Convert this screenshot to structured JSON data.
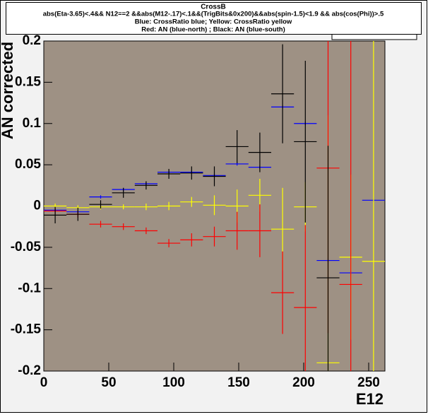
{
  "chart_data": {
    "type": "errorbar",
    "title": "CrossB",
    "subtitle_lines": [
      "abs(Eta-3.65)<.4&& N12==2 &&abs(M12-.17)<.1&&(TrigBits&0x200)&&abs(spin-1.5)<1.9 && abs(cos(Phi))>.5",
      "Blue: CrossRatio blue;  Yellow: CrossRatio yellow",
      "Red: AN (blue-north) ;  Black: AN (blue-south)"
    ],
    "x_label": "E12",
    "y_label": "AN corrected",
    "x": [
      8.75,
      26.25,
      43.75,
      61.25,
      78.75,
      96.25,
      113.75,
      131.25,
      148.75,
      166.25,
      183.75,
      201.25,
      218.75,
      236.25,
      253.75
    ],
    "series": [
      {
        "color": "#0000ff",
        "values": [
          -0.005,
          -0.007,
          0.011,
          0.02,
          0.027,
          0.041,
          0.041,
          0.037,
          0.051,
          0.047,
          0.12,
          0.1,
          -0.066,
          -0.081,
          0.007
        ],
        "errors": [
          0.002,
          0.002,
          0.002,
          0.002,
          0.002,
          0.002,
          0.002,
          0.002,
          0.002,
          0.002,
          0.002,
          0.002,
          0.002,
          0.002,
          0.002
        ]
      },
      {
        "color": "#ffff00",
        "values": [
          0.0,
          -0.002,
          -0.001,
          -0.001,
          -0.001,
          0.0,
          0.005,
          0.001,
          0.0,
          0.013,
          -0.028,
          -0.001,
          -0.19,
          -0.062,
          -0.067
        ],
        "errors": [
          0.003,
          0.003,
          0.003,
          0.003,
          0.004,
          0.005,
          0.006,
          0.012,
          0.02,
          0.02,
          0.05,
          0.03,
          0.3,
          0.1,
          0.28
        ]
      },
      {
        "color": "#ff0000",
        "values": [
          -0.006,
          -0.01,
          -0.022,
          -0.025,
          -0.03,
          -0.045,
          -0.041,
          -0.037,
          -0.03,
          -0.03,
          -0.105,
          -0.123,
          0.046,
          -0.095,
          null
        ],
        "errors": [
          0.004,
          0.004,
          0.004,
          0.004,
          0.004,
          0.005,
          0.008,
          0.012,
          0.023,
          0.032,
          0.05,
          0.1,
          0.2,
          0.3,
          null
        ]
      },
      {
        "color": "#000000",
        "values": [
          -0.011,
          -0.01,
          0.002,
          0.016,
          0.025,
          0.039,
          0.04,
          0.036,
          0.072,
          0.065,
          0.136,
          0.078,
          -0.087,
          null,
          null
        ],
        "errors": [
          0.01,
          0.008,
          0.005,
          0.006,
          0.005,
          0.006,
          0.008,
          0.012,
          0.02,
          0.024,
          0.06,
          0.098,
          0.16,
          null,
          null
        ]
      }
    ],
    "xlim": [
      0,
      262.5
    ],
    "ylim": [
      -0.2,
      0.2
    ],
    "xticks": [
      0,
      50,
      100,
      150,
      200,
      250
    ],
    "yticks": [
      -0.2,
      -0.15,
      -0.1,
      -0.05,
      0,
      0.05,
      0.1,
      0.15,
      0.2
    ],
    "plot_background": "#9e9184"
  }
}
